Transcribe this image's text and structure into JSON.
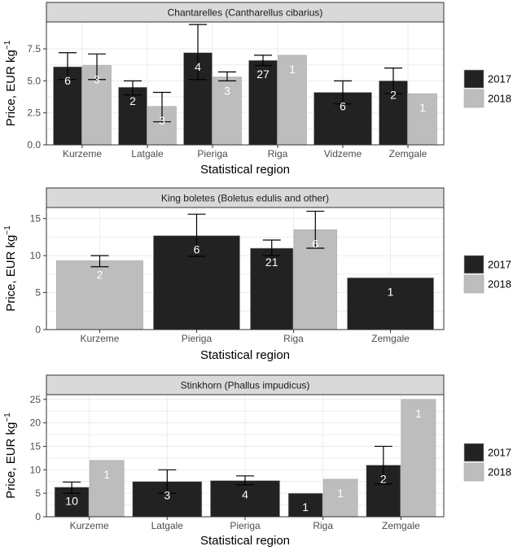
{
  "colors": {
    "y2017": "#222222",
    "y2018": "#bdbdbd",
    "err": "#000000"
  },
  "legend": {
    "items": [
      {
        "label": "2017"
      },
      {
        "label": "2018"
      }
    ]
  },
  "chart_data": [
    {
      "type": "bar",
      "title": "Chantarelles (Cantharellus cibarius)",
      "xlabel": "Statistical region",
      "ylabel": "Price, EUR kg",
      "ylabel_sup": "−1",
      "ylim": [
        0,
        9.6
      ],
      "yticks": [
        0,
        2.5,
        5,
        7.5
      ],
      "ytick_labels": [
        "0.0",
        "2.5",
        "5.0",
        "7.5"
      ],
      "categories": [
        "Kurzeme",
        "Latgale",
        "Pieriga",
        "Riga",
        "Vidzeme",
        "Zemgale"
      ],
      "bars": [
        {
          "cat": "Kurzeme",
          "year": "2017",
          "value": 6.1,
          "err": [
            5.1,
            7.2
          ],
          "n": "6"
        },
        {
          "cat": "Kurzeme",
          "year": "2018",
          "value": 6.2,
          "err": [
            5.1,
            7.1
          ],
          "n": "3"
        },
        {
          "cat": "Latgale",
          "year": "2017",
          "value": 4.5,
          "err": [
            3.9,
            5.0
          ],
          "n": "2"
        },
        {
          "cat": "Latgale",
          "year": "2018",
          "value": 3.0,
          "err": [
            1.8,
            4.1
          ],
          "n": "3"
        },
        {
          "cat": "Pieriga",
          "year": "2017",
          "value": 7.2,
          "err": [
            5.1,
            9.4
          ],
          "n": "4"
        },
        {
          "cat": "Pieriga",
          "year": "2018",
          "value": 5.3,
          "err": [
            5.0,
            5.7
          ],
          "n": "3"
        },
        {
          "cat": "Riga",
          "year": "2017",
          "value": 6.6,
          "err": [
            6.2,
            7.0
          ],
          "n": "27"
        },
        {
          "cat": "Riga",
          "year": "2018",
          "value": 7.0,
          "err": null,
          "n": "1"
        },
        {
          "cat": "Vidzeme",
          "year": "2017",
          "value": 4.1,
          "err": [
            3.2,
            5.0
          ],
          "n": "6",
          "span": true
        },
        {
          "cat": "Zemgale",
          "year": "2017",
          "value": 5.0,
          "err": [
            4.0,
            6.0
          ],
          "n": "2"
        },
        {
          "cat": "Zemgale",
          "year": "2018",
          "value": 4.0,
          "err": null,
          "n": "1"
        }
      ]
    },
    {
      "type": "bar",
      "title": "King boletes (Boletus edulis and other)",
      "xlabel": "Statistical region",
      "ylabel": "Price, EUR kg",
      "ylabel_sup": "−1",
      "ylim": [
        0,
        16.5
      ],
      "yticks": [
        0,
        5,
        10,
        15
      ],
      "ytick_labels": [
        "0",
        "5",
        "10",
        "15"
      ],
      "categories": [
        "Kurzeme",
        "Pieriga",
        "Riga",
        "Zemgale"
      ],
      "bars": [
        {
          "cat": "Kurzeme",
          "year": "2018",
          "value": 9.3,
          "err": [
            8.5,
            10.0
          ],
          "n": "2",
          "span": true
        },
        {
          "cat": "Pieriga",
          "year": "2017",
          "value": 12.7,
          "err": [
            9.9,
            15.6
          ],
          "n": "6",
          "span": true
        },
        {
          "cat": "Riga",
          "year": "2017",
          "value": 11.0,
          "err": [
            10.0,
            12.1
          ],
          "n": "21"
        },
        {
          "cat": "Riga",
          "year": "2018",
          "value": 13.5,
          "err": [
            11.0,
            16.0
          ],
          "n": "6"
        },
        {
          "cat": "Zemgale",
          "year": "2017",
          "value": 7.0,
          "err": null,
          "n": "1",
          "span": true
        }
      ]
    },
    {
      "type": "bar",
      "title": "Stinkhorn (Phallus impudicus)",
      "xlabel": "Statistical region",
      "ylabel": "Price, EUR kg",
      "ylabel_sup": "−1",
      "ylim": [
        0,
        26
      ],
      "yticks": [
        0,
        5,
        10,
        15,
        20,
        25
      ],
      "ytick_labels": [
        "0",
        "5",
        "10",
        "15",
        "20",
        "25"
      ],
      "categories": [
        "Kurzeme",
        "Latgale",
        "Pieriga",
        "Riga",
        "Zemgale"
      ],
      "bars": [
        {
          "cat": "Kurzeme",
          "year": "2017",
          "value": 6.3,
          "err": [
            5.0,
            7.4
          ],
          "n": "10"
        },
        {
          "cat": "Kurzeme",
          "year": "2018",
          "value": 12.0,
          "err": null,
          "n": "1"
        },
        {
          "cat": "Latgale",
          "year": "2017",
          "value": 7.5,
          "err": [
            5.0,
            10.0
          ],
          "n": "3",
          "span": true
        },
        {
          "cat": "Pieriga",
          "year": "2017",
          "value": 7.7,
          "err": [
            6.8,
            8.7
          ],
          "n": "4",
          "span": true
        },
        {
          "cat": "Riga",
          "year": "2017",
          "value": 5.0,
          "err": null,
          "n": "1"
        },
        {
          "cat": "Riga",
          "year": "2018",
          "value": 8.0,
          "err": null,
          "n": "1"
        },
        {
          "cat": "Zemgale",
          "year": "2017",
          "value": 11.0,
          "err": [
            7.0,
            15.0
          ],
          "n": "2"
        },
        {
          "cat": "Zemgale",
          "year": "2018",
          "value": 25.0,
          "err": null,
          "n": "1"
        }
      ]
    }
  ]
}
